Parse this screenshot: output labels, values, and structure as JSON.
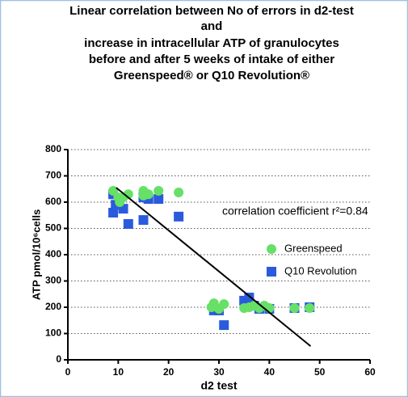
{
  "chart_data": {
    "type": "scatter",
    "title": [
      "Linear correlation between No of errors in d2-test",
      "and",
      "increase in intracellular ATP of granulocytes",
      "before and after 5 weeks of intake of either",
      "Greenspeed® or Q10 Revolution®"
    ],
    "x_label": "d2 test",
    "y_label": "ATP pmol/10⁶cells",
    "annotation": "correlation coefficient r²=0.84",
    "xlim": [
      0,
      60
    ],
    "xticks": [
      0,
      10,
      20,
      30,
      40,
      50,
      60
    ],
    "ylim": [
      0,
      800
    ],
    "yticks": [
      0,
      100,
      200,
      300,
      400,
      500,
      600,
      700,
      800
    ],
    "grid": true,
    "series": [
      {
        "name": "Greenspeed",
        "color": "#66e066",
        "marker": "circle",
        "x": [
          9,
          10,
          10.3,
          11,
          12,
          15,
          15,
          16,
          18,
          22,
          28.5,
          29,
          30,
          31,
          35,
          36,
          37,
          38,
          39,
          40,
          45,
          48
        ],
        "values": [
          643,
          618,
          600,
          618,
          630,
          643,
          625,
          630,
          643,
          637,
          200,
          215,
          194,
          212,
          197,
          200,
          206,
          197,
          206,
          197,
          197,
          197
        ]
      },
      {
        "name": "Q10 Revolution",
        "color": "#2a5bdc",
        "marker": "square",
        "x": [
          9,
          9,
          9.5,
          11,
          12,
          15,
          15,
          16,
          18,
          22,
          29,
          30,
          31,
          35,
          36,
          37,
          38,
          40,
          45,
          48
        ],
        "values": [
          560,
          630,
          590,
          575,
          517,
          532,
          618,
          612,
          612,
          545,
          188,
          188,
          132,
          225,
          237,
          206,
          194,
          194,
          197,
          200
        ]
      }
    ],
    "trend_line": {
      "x": [
        9.6,
        48.2
      ],
      "values": [
        655,
        52
      ]
    }
  }
}
